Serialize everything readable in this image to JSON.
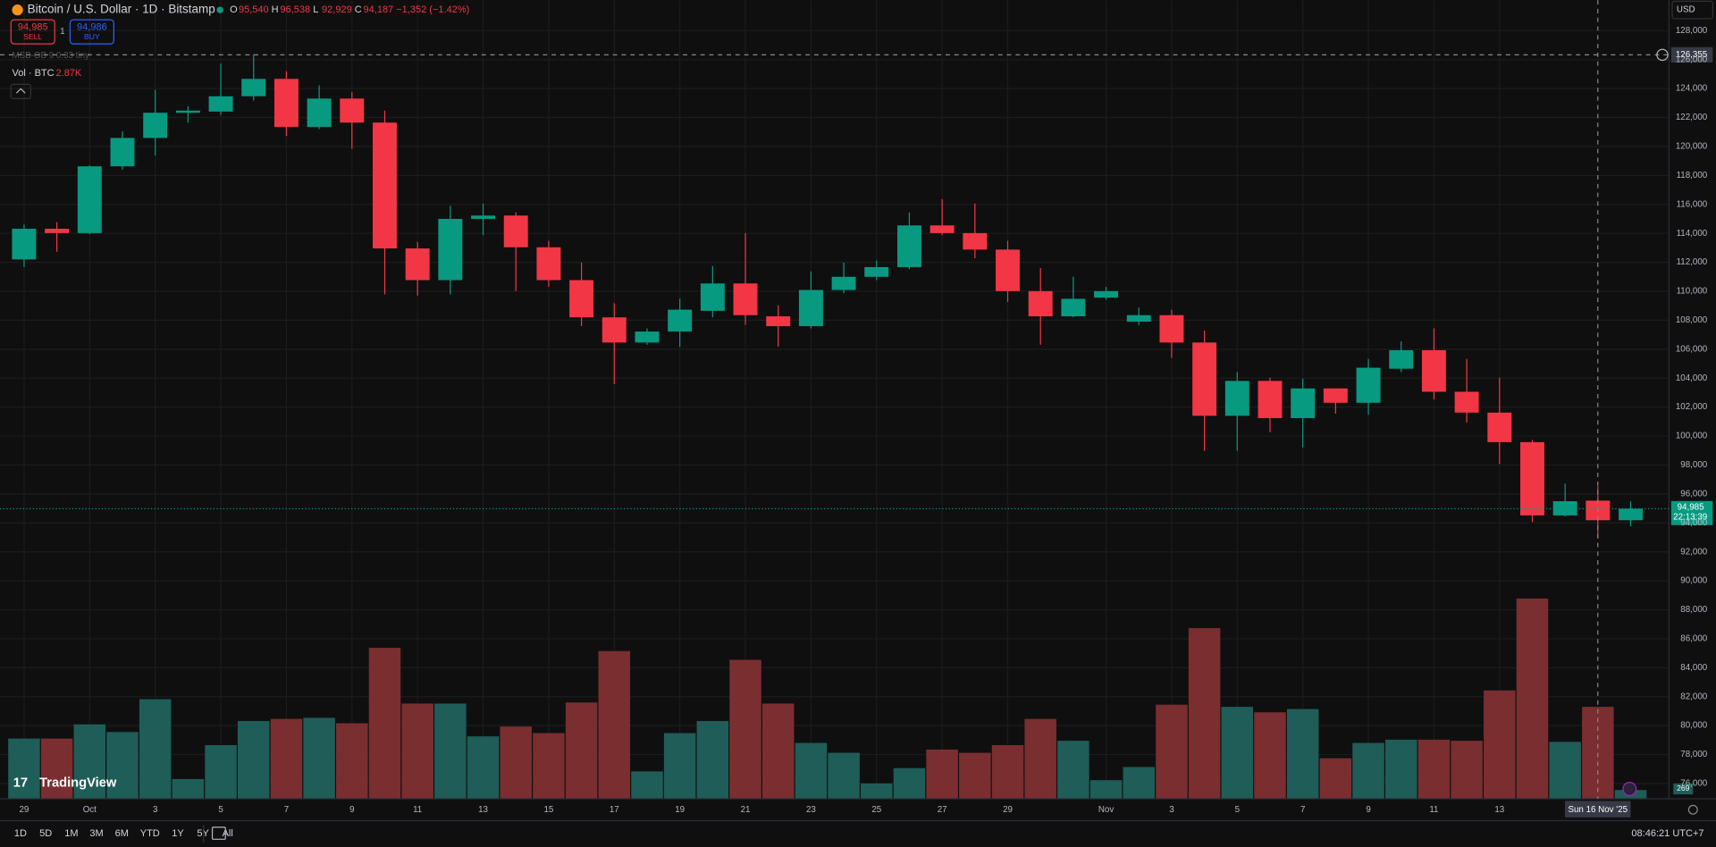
{
  "header": {
    "symbol": "Bitcoin / U.S. Dollar · 1D · Bitstamp",
    "ohlc": [
      {
        "key": "O",
        "value": "95,540"
      },
      {
        "key": "H",
        "value": "96,538"
      },
      {
        "key": "L",
        "value": "92,929"
      },
      {
        "key": "C",
        "value": "94,187"
      }
    ],
    "change": "−1,352 (−1.42%)",
    "sell_price": "94,985",
    "sell": "SELL",
    "spread": "1",
    "buy_price": "94,986",
    "buy": "BUY",
    "indicator": "MSB-OB 9 0.33 tiny",
    "volume_label": "Vol · BTC",
    "volume_value": "2.87K"
  },
  "price_scale": {
    "currency": "USD",
    "crosshair_price": "126,355",
    "last_price": "94,985",
    "countdown": "22:13:39"
  },
  "crosshair_date": "Sun 16 Nov '25",
  "badge": "269",
  "branding": "TradingView",
  "toolbar": {
    "ranges": [
      "1D",
      "5D",
      "1M",
      "3M",
      "6M",
      "YTD",
      "1Y",
      "5Y",
      "All"
    ],
    "clock": "08:46:21 UTC+7"
  },
  "chart_data": {
    "type": "candlestick",
    "categories": [
      "29",
      null,
      "Oct",
      null,
      "3",
      null,
      "5",
      null,
      "7",
      null,
      "9",
      null,
      "11",
      null,
      "13",
      null,
      "15",
      null,
      "17",
      null,
      "19",
      null,
      "21",
      null,
      "23",
      null,
      "25",
      null,
      "27",
      null,
      "29",
      null,
      null,
      "Nov",
      null,
      "3",
      null,
      "5",
      null,
      "7",
      null,
      "9",
      null,
      "11",
      null,
      "13",
      null,
      null,
      null,
      null
    ],
    "open": [
      112200,
      114320,
      114020,
      118630,
      120590,
      122330,
      122410,
      123470,
      124670,
      121350,
      123310,
      121650,
      112960,
      110770,
      115000,
      115230,
      113040,
      110770,
      108200,
      106460,
      107220,
      108650,
      110540,
      108270,
      107590,
      110090,
      111000,
      111670,
      114550,
      114020,
      112880,
      110010,
      108270,
      109560,
      107900,
      108350,
      106460,
      101400,
      103810,
      101240,
      103290,
      102300,
      104650,
      105930,
      103060,
      101620,
      99580,
      94520,
      95540,
      94187
    ],
    "high": [
      114620,
      114770,
      118700,
      121050,
      123920,
      122780,
      125730,
      126355,
      125200,
      124220,
      123770,
      122480,
      113410,
      115910,
      116060,
      115450,
      113490,
      111980,
      109180,
      107440,
      109480,
      111750,
      114020,
      109030,
      111370,
      111980,
      112130,
      115450,
      116360,
      116060,
      113490,
      111600,
      111000,
      110310,
      108880,
      108730,
      107290,
      104420,
      104040,
      103960,
      103290,
      105330,
      106540,
      107440,
      105330,
      104040,
      99730,
      96710,
      96538,
      95500
    ],
    "low": [
      111670,
      112730,
      113950,
      118400,
      119380,
      121650,
      122180,
      123160,
      120740,
      121200,
      119840,
      109790,
      109710,
      109790,
      113870,
      110010,
      110310,
      107590,
      103590,
      106310,
      106160,
      108200,
      107670,
      106160,
      107440,
      109860,
      110770,
      111520,
      113870,
      112280,
      109260,
      106310,
      108200,
      109410,
      107670,
      105400,
      98980,
      98980,
      100260,
      99210,
      101550,
      101470,
      104420,
      102530,
      100940,
      98070,
      94070,
      94440,
      92929,
      93760
    ],
    "close": [
      114320,
      114020,
      118630,
      120590,
      122330,
      122480,
      123470,
      124670,
      121350,
      123310,
      121650,
      112960,
      110770,
      115000,
      115230,
      113040,
      110770,
      108200,
      106460,
      107220,
      108730,
      110540,
      108350,
      107590,
      110090,
      111000,
      111670,
      114550,
      114020,
      112880,
      110010,
      108270,
      109480,
      110010,
      108350,
      106460,
      101400,
      103810,
      101240,
      103290,
      102300,
      104720,
      105930,
      103060,
      101620,
      99580,
      94520,
      95500,
      94187,
      94985
    ],
    "volume": [
      19800,
      19800,
      24480,
      21960,
      32760,
      6480,
      17640,
      25560,
      26280,
      26640,
      24840,
      49680,
      31320,
      31320,
      20520,
      23760,
      21600,
      31680,
      48600,
      9000,
      21600,
      25560,
      45720,
      31320,
      18360,
      15120,
      5040,
      10080,
      16200,
      15120,
      17640,
      26280,
      19080,
      6120,
      10440,
      30960,
      56160,
      30240,
      28440,
      29520,
      13320,
      18360,
      19440,
      19440,
      19080,
      35640,
      65880,
      18720,
      30240,
      2870
    ],
    "up_color": "#089981",
    "down_color": "#f23645",
    "volume_up_color": "#1f5d58",
    "volume_down_color": "#7a2e30",
    "ylim": [
      74950,
      128750
    ],
    "yticks": [
      {
        "value": 76000,
        "label": "76,000"
      },
      {
        "value": 78000,
        "label": "78,000"
      },
      {
        "value": 80000,
        "label": "80,000"
      },
      {
        "value": 82000,
        "label": "82,000"
      },
      {
        "value": 84000,
        "label": "84,000"
      },
      {
        "value": 86000,
        "label": "86,000"
      },
      {
        "value": 88000,
        "label": "88,000"
      },
      {
        "value": 90000,
        "label": "90,000"
      },
      {
        "value": 92000,
        "label": "92,000"
      },
      {
        "value": 94000,
        "label": "94,000"
      },
      {
        "value": 96000,
        "label": "96,000"
      },
      {
        "value": 98000,
        "label": "98,000"
      },
      {
        "value": 100000,
        "label": "100,000"
      },
      {
        "value": 102000,
        "label": "102,000"
      },
      {
        "value": 104000,
        "label": "104,000"
      },
      {
        "value": 106000,
        "label": "106,000"
      },
      {
        "value": 108000,
        "label": "108,000"
      },
      {
        "value": 110000,
        "label": "110,000"
      },
      {
        "value": 112000,
        "label": "112,000"
      },
      {
        "value": 114000,
        "label": "114,000"
      },
      {
        "value": 116000,
        "label": "116,000"
      },
      {
        "value": 118000,
        "label": "118,000"
      },
      {
        "value": 120000,
        "label": "120,000"
      },
      {
        "value": 122000,
        "label": "122,000"
      },
      {
        "value": 124000,
        "label": "124,000"
      },
      {
        "value": 126000,
        "label": "126,000"
      },
      {
        "value": 128000,
        "label": "128,000"
      }
    ],
    "grid": true
  }
}
